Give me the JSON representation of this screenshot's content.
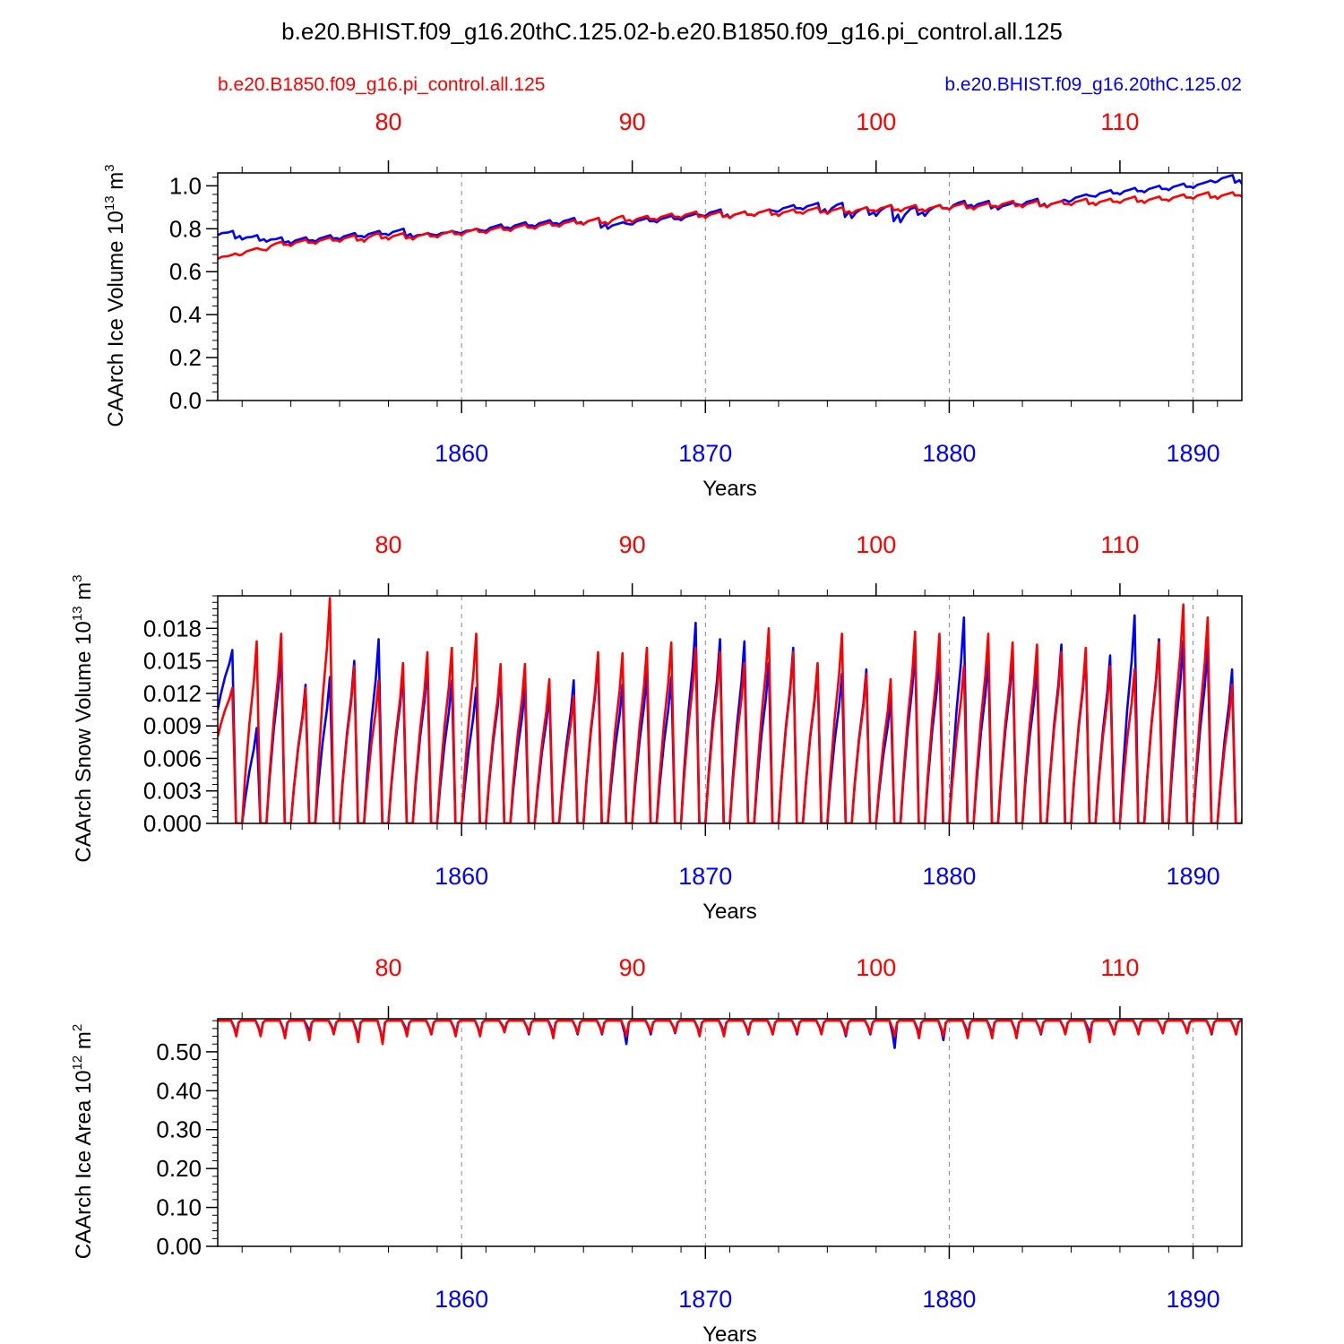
{
  "title": "b.e20.BHIST.f09_g16.20thC.125.02-b.e20.B1850.f09_g16.pi_control.all.125",
  "legend": {
    "left_label": "b.e20.B1850.f09_g16.pi_control.all.125",
    "right_label": "b.e20.BHIST.f09_g16.20thC.125.02"
  },
  "colors": {
    "control": "#ff0000",
    "hist": "#0000ff",
    "axis": "#000000",
    "grid": "#888888"
  },
  "chart_data": [
    {
      "type": "line",
      "id": "ice-volume",
      "ylabel_main": "CAArch Ice Volume 10",
      "ylabel_exp": "13",
      "ylabel_unit": " m",
      "ylabel_unit_exp": "3",
      "xlabel": "Years",
      "xlim": [
        1850,
        1892
      ],
      "ylim": [
        0.0,
        1.06
      ],
      "yticks": [
        0.0,
        0.2,
        0.4,
        0.6,
        0.8,
        1.0
      ],
      "ytick_labels": [
        "0.0",
        "0.2",
        "0.4",
        "0.6",
        "0.8",
        "1.0"
      ],
      "bottom_ticks": [
        1860,
        1870,
        1880,
        1890
      ],
      "bottom_tick_labels": [
        "1860",
        "1870",
        "1880",
        "1890"
      ],
      "top_ticks": [
        1857,
        1867,
        1877,
        1887
      ],
      "top_tick_labels": [
        "80",
        "90",
        "100",
        "110"
      ],
      "grid_x": [
        1860,
        1870,
        1880,
        1890
      ],
      "series": [
        {
          "name": "b.e20.BHIST.f09_g16.20thC.125.02",
          "color_key": "hist",
          "kind": "seasonal",
          "years": [
            1850,
            1851,
            1852,
            1853,
            1854,
            1855,
            1856,
            1857,
            1858,
            1859,
            1860,
            1861,
            1862,
            1863,
            1864,
            1865,
            1866,
            1867,
            1868,
            1869,
            1870,
            1871,
            1872,
            1873,
            1874,
            1875,
            1876,
            1877,
            1878,
            1879,
            1880,
            1881,
            1882,
            1883,
            1884,
            1885,
            1886,
            1887,
            1888,
            1889,
            1890,
            1891,
            1892
          ],
          "peaks": [
            0.79,
            0.77,
            0.76,
            0.76,
            0.77,
            0.78,
            0.79,
            0.8,
            0.78,
            0.79,
            0.8,
            0.82,
            0.83,
            0.84,
            0.85,
            0.85,
            0.83,
            0.85,
            0.86,
            0.87,
            0.89,
            0.88,
            0.89,
            0.91,
            0.92,
            0.92,
            0.9,
            0.91,
            0.9,
            0.91,
            0.93,
            0.93,
            0.92,
            0.94,
            0.93,
            0.96,
            0.98,
            0.99,
            1.0,
            1.01,
            1.02,
            1.05,
            1.03
          ],
          "dips": [
            0.77,
            0.75,
            0.74,
            0.73,
            0.74,
            0.75,
            0.76,
            0.77,
            0.76,
            0.77,
            0.78,
            0.79,
            0.8,
            0.81,
            0.82,
            0.82,
            0.8,
            0.82,
            0.83,
            0.84,
            0.86,
            0.85,
            0.86,
            0.88,
            0.89,
            0.87,
            0.85,
            0.86,
            0.83,
            0.86,
            0.89,
            0.9,
            0.89,
            0.91,
            0.9,
            0.93,
            0.95,
            0.96,
            0.97,
            0.98,
            0.99,
            1.02,
            1.01
          ]
        },
        {
          "name": "b.e20.B1850.f09_g16.pi_control.all.125",
          "color_key": "control",
          "kind": "seasonal",
          "years": [
            1850,
            1851,
            1852,
            1853,
            1854,
            1855,
            1856,
            1857,
            1858,
            1859,
            1860,
            1861,
            1862,
            1863,
            1864,
            1865,
            1866,
            1867,
            1868,
            1869,
            1870,
            1871,
            1872,
            1873,
            1874,
            1875,
            1876,
            1877,
            1878,
            1879,
            1880,
            1881,
            1882,
            1883,
            1884,
            1885,
            1886,
            1887,
            1888,
            1889,
            1890,
            1891,
            1892
          ],
          "peaks": [
            0.68,
            0.71,
            0.74,
            0.75,
            0.76,
            0.77,
            0.78,
            0.78,
            0.78,
            0.79,
            0.8,
            0.81,
            0.82,
            0.83,
            0.84,
            0.85,
            0.86,
            0.86,
            0.87,
            0.88,
            0.88,
            0.88,
            0.89,
            0.89,
            0.9,
            0.9,
            0.9,
            0.91,
            0.91,
            0.91,
            0.92,
            0.92,
            0.93,
            0.93,
            0.93,
            0.94,
            0.94,
            0.95,
            0.95,
            0.96,
            0.97,
            0.97,
            0.98
          ],
          "dips": [
            0.66,
            0.68,
            0.7,
            0.72,
            0.73,
            0.74,
            0.74,
            0.75,
            0.75,
            0.76,
            0.77,
            0.78,
            0.79,
            0.8,
            0.81,
            0.82,
            0.82,
            0.83,
            0.84,
            0.85,
            0.85,
            0.85,
            0.86,
            0.86,
            0.87,
            0.87,
            0.87,
            0.88,
            0.88,
            0.88,
            0.89,
            0.89,
            0.9,
            0.9,
            0.9,
            0.91,
            0.91,
            0.92,
            0.92,
            0.93,
            0.94,
            0.94,
            0.95
          ]
        }
      ]
    },
    {
      "type": "line",
      "id": "snow-volume",
      "ylabel_main": "CAArch Snow Volume 10",
      "ylabel_exp": "13",
      "ylabel_unit": " m",
      "ylabel_unit_exp": "3",
      "xlabel": "Years",
      "xlim": [
        1850,
        1892
      ],
      "ylim": [
        0.0,
        0.021
      ],
      "yticks": [
        0.0,
        0.003,
        0.006,
        0.009,
        0.012,
        0.015,
        0.018
      ],
      "ytick_labels": [
        "0.000",
        "0.003",
        "0.006",
        "0.009",
        "0.012",
        "0.015",
        "0.018"
      ],
      "bottom_ticks": [
        1860,
        1870,
        1880,
        1890
      ],
      "bottom_tick_labels": [
        "1860",
        "1870",
        "1880",
        "1890"
      ],
      "top_ticks": [
        1857,
        1867,
        1877,
        1887
      ],
      "top_tick_labels": [
        "80",
        "90",
        "100",
        "110"
      ],
      "grid_x": [
        1860,
        1870,
        1880,
        1890
      ],
      "series": [
        {
          "name": "b.e20.BHIST.f09_g16.20thC.125.02",
          "color_key": "hist",
          "kind": "sawtooth",
          "years": [
            1850,
            1851,
            1852,
            1853,
            1854,
            1855,
            1856,
            1857,
            1858,
            1859,
            1860,
            1861,
            1862,
            1863,
            1864,
            1865,
            1866,
            1867,
            1868,
            1869,
            1870,
            1871,
            1872,
            1873,
            1874,
            1875,
            1876,
            1877,
            1878,
            1879,
            1880,
            1881,
            1882,
            1883,
            1884,
            1885,
            1886,
            1887,
            1888,
            1889,
            1890,
            1891,
            1892
          ],
          "peaks": [
            0.016,
            0.0088,
            0.0158,
            0.0128,
            0.0135,
            0.015,
            0.017,
            0.014,
            0.0145,
            0.0132,
            0.0125,
            0.0138,
            0.0125,
            0.012,
            0.0132,
            0.0153,
            0.0128,
            0.0138,
            0.0135,
            0.0185,
            0.017,
            0.0168,
            0.0148,
            0.0162,
            0.0145,
            0.0138,
            0.0142,
            0.0115,
            0.016,
            0.0155,
            0.019,
            0.0152,
            0.0155,
            0.0145,
            0.0165,
            0.0158,
            0.0155,
            0.0192,
            0.017,
            0.0168,
            0.0162,
            0.0142,
            0.008
          ],
          "troughs": [
            0.0105,
            0.0,
            0.0,
            0.0,
            0.0,
            0.0,
            0.0,
            0.0,
            0.0,
            0.0,
            0.0,
            0.0,
            0.0,
            0.0,
            0.0,
            0.0,
            0.0,
            0.0,
            0.0,
            0.0,
            0.0,
            0.0,
            0.0,
            0.0,
            0.0,
            0.0,
            0.0,
            0.0,
            0.0,
            0.0,
            0.0,
            0.0,
            0.0,
            0.0,
            0.0,
            0.0,
            0.0,
            0.0,
            0.0,
            0.0,
            0.0,
            0.0,
            0.0
          ]
        },
        {
          "name": "b.e20.B1850.f09_g16.pi_control.all.125",
          "color_key": "control",
          "kind": "sawtooth",
          "years": [
            1850,
            1851,
            1852,
            1853,
            1854,
            1855,
            1856,
            1857,
            1858,
            1859,
            1860,
            1861,
            1862,
            1863,
            1864,
            1865,
            1866,
            1867,
            1868,
            1869,
            1870,
            1871,
            1872,
            1873,
            1874,
            1875,
            1876,
            1877,
            1878,
            1879,
            1880,
            1881,
            1882,
            1883,
            1884,
            1885,
            1886,
            1887,
            1888,
            1889,
            1890,
            1891,
            1892
          ],
          "peaks": [
            0.0125,
            0.0168,
            0.0175,
            0.0125,
            0.0208,
            0.0145,
            0.0132,
            0.0148,
            0.0158,
            0.0162,
            0.0175,
            0.0147,
            0.0147,
            0.0133,
            0.0118,
            0.0158,
            0.0157,
            0.0162,
            0.0167,
            0.0162,
            0.0158,
            0.0148,
            0.018,
            0.0158,
            0.0148,
            0.0175,
            0.0138,
            0.0133,
            0.0177,
            0.0175,
            0.0145,
            0.0175,
            0.0167,
            0.0165,
            0.0158,
            0.0162,
            0.0145,
            0.0142,
            0.0167,
            0.0202,
            0.019,
            0.0128,
            0.0098
          ],
          "troughs": [
            0.008,
            0.0,
            0.0,
            0.0,
            0.0,
            0.0,
            0.0,
            0.0,
            0.0,
            0.0,
            0.0,
            0.0,
            0.0,
            0.0,
            0.0,
            0.0,
            0.0,
            0.0,
            0.0,
            0.0,
            0.0,
            0.0,
            0.0,
            0.0,
            0.0,
            0.0,
            0.0,
            0.0,
            0.0,
            0.0,
            0.0,
            0.0,
            0.0,
            0.0,
            0.0,
            0.0,
            0.0,
            0.0,
            0.0,
            0.0,
            0.0,
            0.0,
            0.0
          ]
        }
      ]
    },
    {
      "type": "line",
      "id": "ice-area",
      "ylabel_main": "CAArch Ice Area 10",
      "ylabel_exp": "12",
      "ylabel_unit": " m",
      "ylabel_unit_exp": "2",
      "xlabel": "Years",
      "xlim": [
        1850,
        1892
      ],
      "ylim": [
        0.0,
        0.585
      ],
      "yticks": [
        0.0,
        0.1,
        0.2,
        0.3,
        0.4,
        0.5
      ],
      "ytick_labels": [
        "0.00",
        "0.10",
        "0.20",
        "0.30",
        "0.40",
        "0.50"
      ],
      "bottom_ticks": [
        1860,
        1870,
        1880,
        1890
      ],
      "bottom_tick_labels": [
        "1860",
        "1870",
        "1880",
        "1890"
      ],
      "top_ticks": [
        1857,
        1867,
        1877,
        1887
      ],
      "top_tick_labels": [
        "80",
        "90",
        "100",
        "110"
      ],
      "grid_x": [
        1860,
        1870,
        1880,
        1890
      ],
      "series": [
        {
          "name": "b.e20.BHIST.f09_g16.20thC.125.02",
          "color_key": "hist",
          "kind": "dip",
          "baseline": 0.58,
          "years": [
            1850,
            1851,
            1852,
            1853,
            1854,
            1855,
            1856,
            1857,
            1858,
            1859,
            1860,
            1861,
            1862,
            1863,
            1864,
            1865,
            1866,
            1867,
            1868,
            1869,
            1870,
            1871,
            1872,
            1873,
            1874,
            1875,
            1876,
            1877,
            1878,
            1879,
            1880,
            1881,
            1882,
            1883,
            1884,
            1885,
            1886,
            1887,
            1888,
            1889,
            1890,
            1891,
            1892
          ],
          "minima": [
            0.545,
            0.545,
            0.54,
            0.55,
            0.55,
            0.535,
            0.525,
            0.55,
            0.545,
            0.545,
            0.545,
            0.555,
            0.545,
            0.545,
            0.545,
            0.545,
            0.52,
            0.545,
            0.548,
            0.545,
            0.548,
            0.545,
            0.545,
            0.545,
            0.548,
            0.54,
            0.545,
            0.51,
            0.545,
            0.53,
            0.545,
            0.545,
            0.54,
            0.545,
            0.548,
            0.545,
            0.545,
            0.548,
            0.548,
            0.548,
            0.545,
            0.545,
            0.548
          ]
        },
        {
          "name": "b.e20.B1850.f09_g16.pi_control.all.125",
          "color_key": "control",
          "kind": "dip",
          "baseline": 0.58,
          "years": [
            1850,
            1851,
            1852,
            1853,
            1854,
            1855,
            1856,
            1857,
            1858,
            1859,
            1860,
            1861,
            1862,
            1863,
            1864,
            1865,
            1866,
            1867,
            1868,
            1869,
            1870,
            1871,
            1872,
            1873,
            1874,
            1875,
            1876,
            1877,
            1878,
            1879,
            1880,
            1881,
            1882,
            1883,
            1884,
            1885,
            1886,
            1887,
            1888,
            1889,
            1890,
            1891,
            1892
          ],
          "minima": [
            0.54,
            0.54,
            0.535,
            0.53,
            0.545,
            0.525,
            0.52,
            0.54,
            0.545,
            0.54,
            0.54,
            0.55,
            0.548,
            0.535,
            0.548,
            0.548,
            0.54,
            0.55,
            0.55,
            0.54,
            0.54,
            0.548,
            0.545,
            0.548,
            0.545,
            0.545,
            0.548,
            0.54,
            0.535,
            0.54,
            0.535,
            0.535,
            0.535,
            0.548,
            0.545,
            0.525,
            0.545,
            0.545,
            0.548,
            0.548,
            0.548,
            0.545,
            0.545
          ]
        }
      ]
    }
  ]
}
